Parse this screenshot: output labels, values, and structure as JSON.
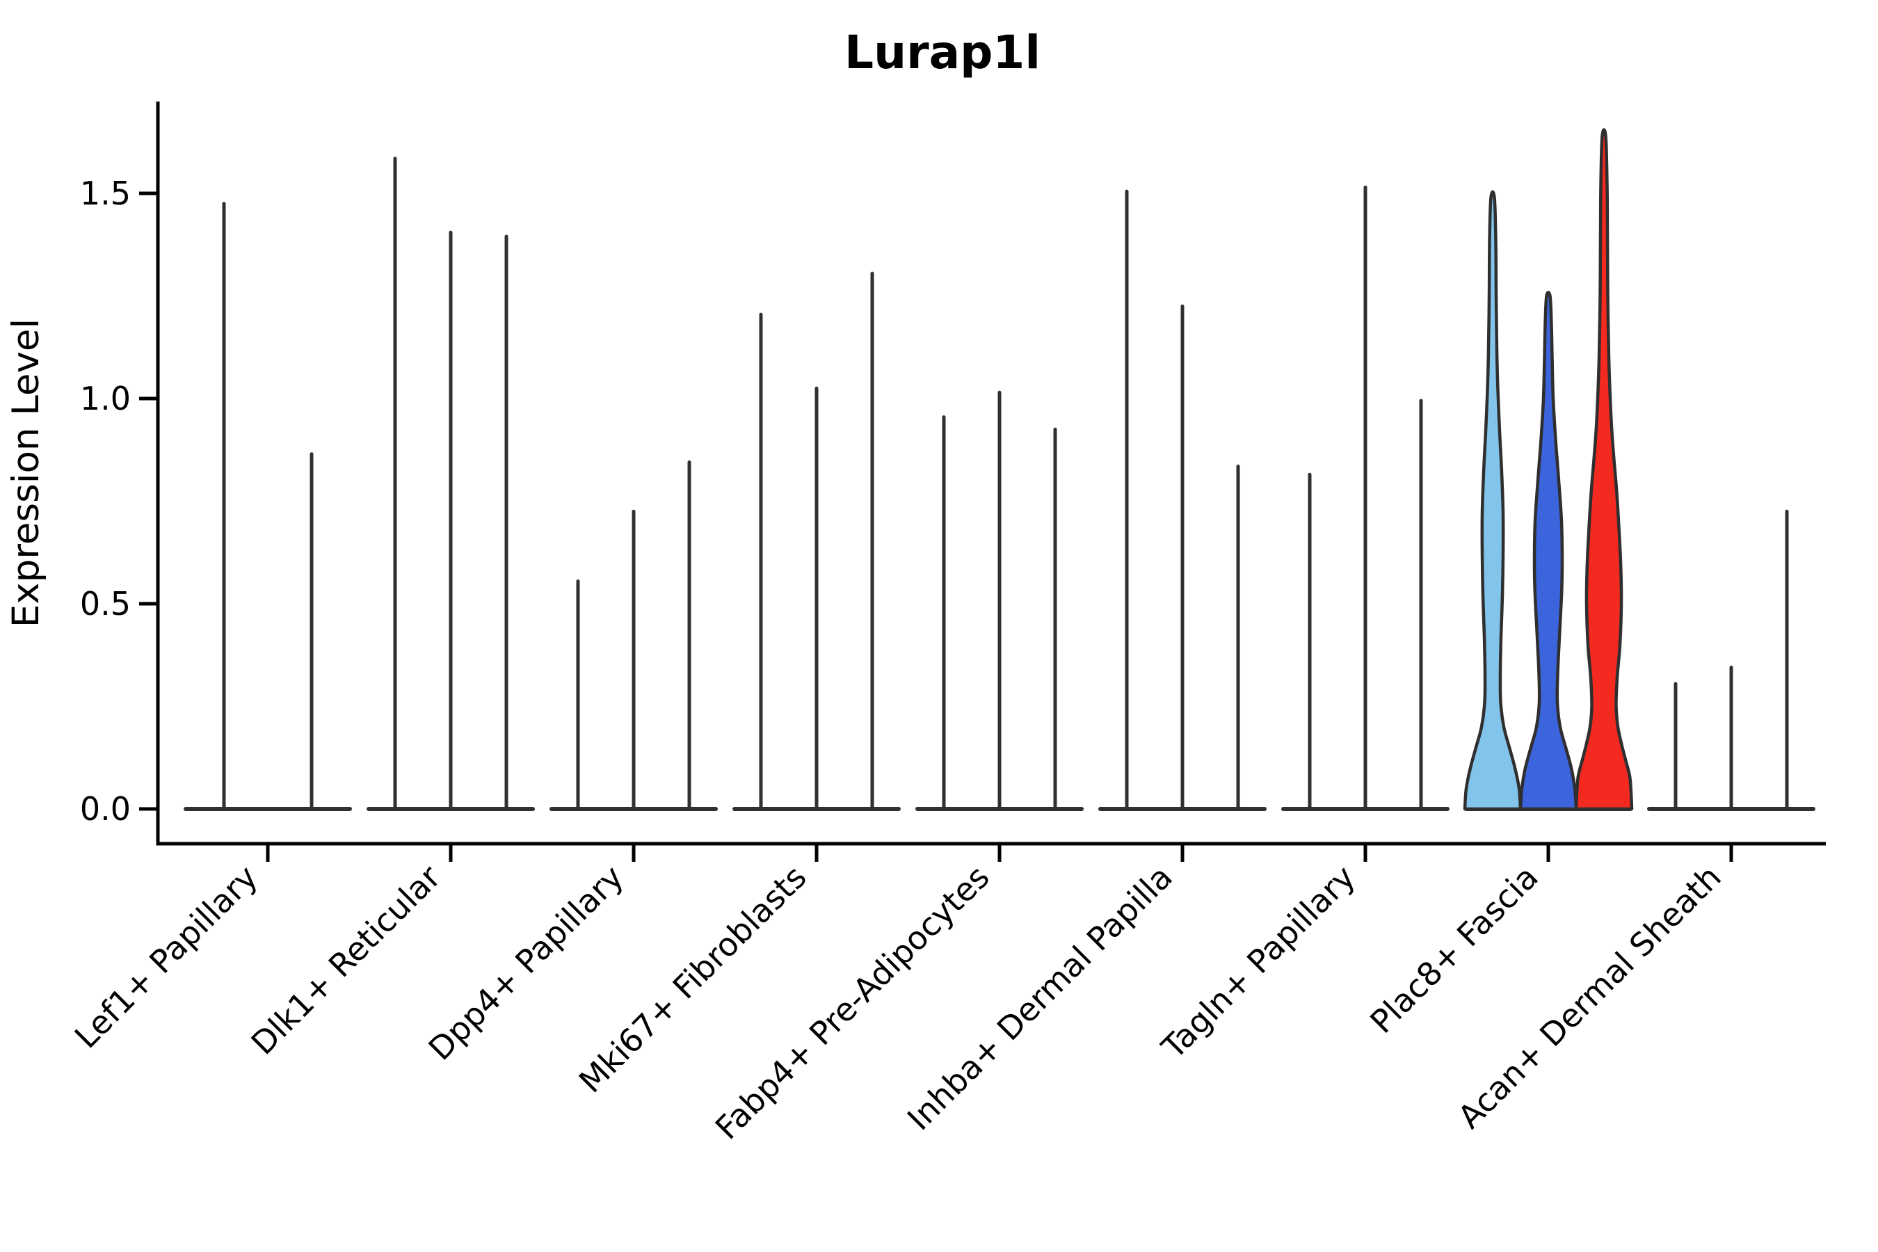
{
  "title": "Lurap1l",
  "axes": {
    "y": {
      "label": "Expression Level",
      "ticks": [
        {
          "label": "0.0",
          "value": 0.0
        },
        {
          "label": "0.5",
          "value": 0.5
        },
        {
          "label": "1.0",
          "value": 1.0
        },
        {
          "label": "1.5",
          "value": 1.5
        }
      ]
    },
    "x": {
      "categories": [
        "Lef1+ Papillary",
        "Dlk1+ Reticular",
        "Dpp4+ Papillary",
        "Mki67+ Fibroblasts",
        "Fabp4+ Pre-Adipocytes",
        "Inhba+ Dermal Papilla",
        "Tagln+ Papillary",
        "Plac8+ Fascia",
        "Acan+ Dermal Sheath"
      ]
    }
  },
  "colors": {
    "spike": "#303030",
    "outline": "#2F2F2F",
    "axis": "#000000",
    "background": "#FFFFFF",
    "highlight_light_blue": "#82C4EA",
    "highlight_dark_blue": "#3C64DC",
    "highlight_red": "#F42A20"
  },
  "chart_data": {
    "type": "violin",
    "title": "Lurap1l",
    "xlabel": "",
    "ylabel": "Expression Level",
    "ylim": [
      0,
      1.65
    ],
    "yticks": [
      0.0,
      0.5,
      1.0,
      1.5
    ],
    "grid": false,
    "legend": "none",
    "categories": [
      "Lef1+ Papillary",
      "Dlk1+ Reticular",
      "Dpp4+ Papillary",
      "Mki67+ Fibroblasts",
      "Fabp4+ Pre-Adipocytes",
      "Inhba+ Dermal Papilla",
      "Tagln+ Papillary",
      "Plac8+ Fascia",
      "Acan+ Dermal Sheath"
    ],
    "groups": [
      {
        "category": "Lef1+ Papillary",
        "violins": [
          {
            "peak": 1.48,
            "style": "spike"
          },
          {
            "peak": 0.87,
            "style": "spike"
          }
        ]
      },
      {
        "category": "Dlk1+ Reticular",
        "violins": [
          {
            "peak": 1.59,
            "style": "spike"
          },
          {
            "peak": 1.41,
            "style": "spike"
          },
          {
            "peak": 1.4,
            "style": "spike"
          }
        ]
      },
      {
        "category": "Dpp4+ Papillary",
        "violins": [
          {
            "peak": 0.56,
            "style": "spike"
          },
          {
            "peak": 0.73,
            "style": "spike"
          },
          {
            "peak": 0.85,
            "style": "spike"
          }
        ]
      },
      {
        "category": "Mki67+ Fibroblasts",
        "violins": [
          {
            "peak": 1.21,
            "style": "spike"
          },
          {
            "peak": 1.03,
            "style": "spike"
          },
          {
            "peak": 1.31,
            "style": "spike"
          }
        ]
      },
      {
        "category": "Fabp4+ Pre-Adipocytes",
        "violins": [
          {
            "peak": 0.96,
            "style": "spike"
          },
          {
            "peak": 1.02,
            "style": "spike"
          },
          {
            "peak": 0.93,
            "style": "spike"
          }
        ]
      },
      {
        "category": "Inhba+ Dermal Papilla",
        "violins": [
          {
            "peak": 1.51,
            "style": "spike"
          },
          {
            "peak": 1.23,
            "style": "spike"
          },
          {
            "peak": 0.84,
            "style": "spike"
          }
        ]
      },
      {
        "category": "Tagln+ Papillary",
        "violins": [
          {
            "peak": 0.82,
            "style": "spike"
          },
          {
            "peak": 1.52,
            "style": "spike"
          },
          {
            "peak": 1.0,
            "style": "spike"
          }
        ]
      },
      {
        "category": "Plac8+ Fascia",
        "violins": [
          {
            "peak": 1.49,
            "style": "filled",
            "fill": "#82C4EA",
            "profile": [
              [
                0,
                40
              ],
              [
                0.05,
                38
              ],
              [
                0.1,
                32
              ],
              [
                0.15,
                24
              ],
              [
                0.2,
                16
              ],
              [
                0.26,
                11.5
              ],
              [
                0.33,
                11
              ],
              [
                0.42,
                12
              ],
              [
                0.52,
                14
              ],
              [
                0.62,
                15
              ],
              [
                0.72,
                15
              ],
              [
                0.82,
                13
              ],
              [
                0.92,
                10
              ],
              [
                1.02,
                7.5
              ],
              [
                1.12,
                6
              ],
              [
                1.25,
                5
              ],
              [
                1.38,
                4.5
              ],
              [
                1.49,
                2.5
              ]
            ]
          },
          {
            "peak": 1.25,
            "style": "filled",
            "fill": "#3C64DC",
            "profile": [
              [
                0,
                40
              ],
              [
                0.05,
                38
              ],
              [
                0.1,
                33
              ],
              [
                0.15,
                25
              ],
              [
                0.2,
                17
              ],
              [
                0.26,
                13
              ],
              [
                0.33,
                13.5
              ],
              [
                0.42,
                16
              ],
              [
                0.52,
                19
              ],
              [
                0.6,
                20
              ],
              [
                0.7,
                19
              ],
              [
                0.8,
                15
              ],
              [
                0.9,
                10.5
              ],
              [
                1.0,
                7
              ],
              [
                1.1,
                5.5
              ],
              [
                1.18,
                4.5
              ],
              [
                1.25,
                2.5
              ]
            ]
          },
          {
            "peak": 1.64,
            "style": "filled",
            "fill": "#F42A20",
            "profile": [
              [
                0,
                40
              ],
              [
                0.04,
                39
              ],
              [
                0.08,
                37
              ],
              [
                0.12,
                31
              ],
              [
                0.16,
                25
              ],
              [
                0.2,
                20
              ],
              [
                0.25,
                17.5
              ],
              [
                0.32,
                19
              ],
              [
                0.4,
                23
              ],
              [
                0.5,
                25
              ],
              [
                0.6,
                24
              ],
              [
                0.7,
                21
              ],
              [
                0.78,
                18
              ],
              [
                0.85,
                14.5
              ],
              [
                0.93,
                11
              ],
              [
                1.0,
                9
              ],
              [
                1.1,
                7
              ],
              [
                1.25,
                5.5
              ],
              [
                1.4,
                5
              ],
              [
                1.52,
                4.5
              ],
              [
                1.64,
                2.5
              ]
            ]
          }
        ]
      },
      {
        "category": "Acan+ Dermal Sheath",
        "violins": [
          {
            "peak": 0.31,
            "style": "spike"
          },
          {
            "peak": 0.35,
            "style": "spike"
          },
          {
            "peak": 0.73,
            "style": "spike"
          }
        ]
      }
    ]
  }
}
